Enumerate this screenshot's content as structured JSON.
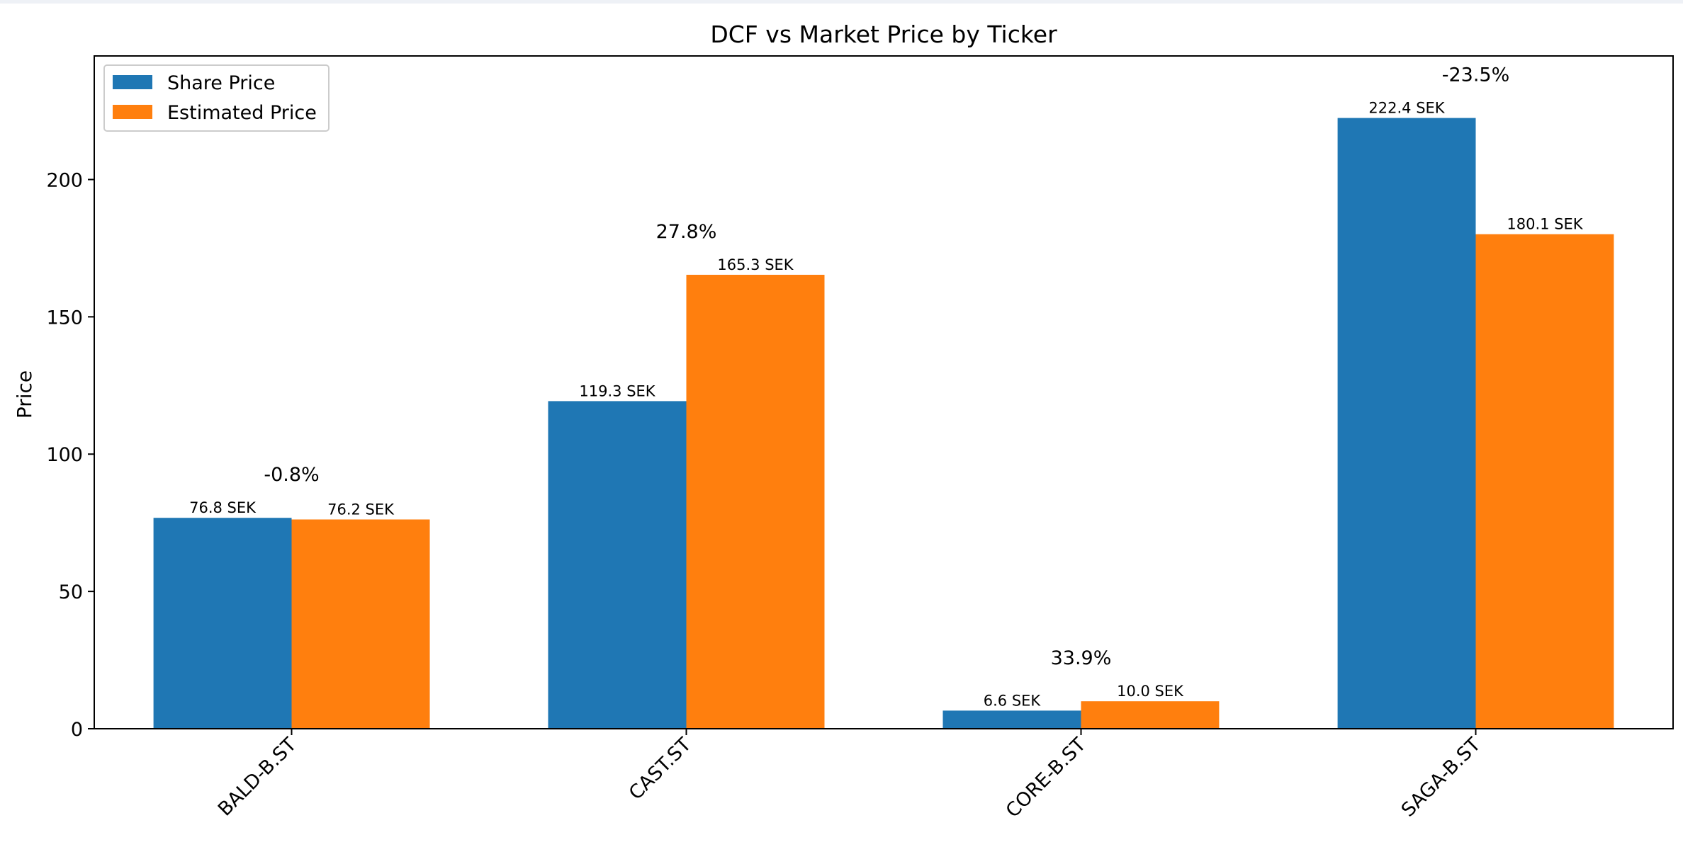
{
  "chart_data": {
    "type": "bar",
    "title": "DCF vs Market Price by Ticker",
    "xlabel": "",
    "ylabel": "Price",
    "ylim": [
      0,
      245
    ],
    "yticks": [
      0,
      50,
      100,
      150,
      200
    ],
    "grid": false,
    "legend_position": "top-left",
    "categories": [
      "BALD-B.ST",
      "CAST.ST",
      "CORE-B.ST",
      "SAGA-B.ST"
    ],
    "series": [
      {
        "name": "Share Price",
        "color": "#1f77b4",
        "values": [
          76.8,
          119.3,
          6.6,
          222.4
        ],
        "labels": [
          "76.8 SEK",
          "119.3 SEK",
          "6.6 SEK",
          "222.4 SEK"
        ]
      },
      {
        "name": "Estimated Price",
        "color": "#ff7f0e",
        "values": [
          76.2,
          165.3,
          10.0,
          180.1
        ],
        "labels": [
          "76.2 SEK",
          "165.3 SEK",
          "10.0 SEK",
          "180.1 SEK"
        ]
      }
    ],
    "annotations": [
      "-0.8%",
      "27.8%",
      "33.9%",
      "-23.5%"
    ]
  }
}
